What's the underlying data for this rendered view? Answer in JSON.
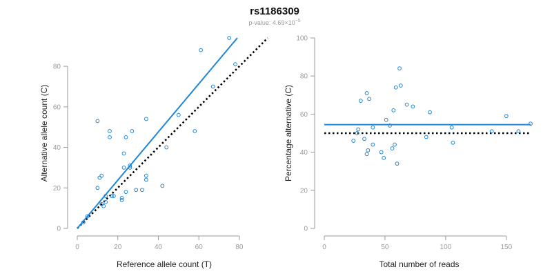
{
  "title": "rs1186309",
  "subtitle": {
    "prefix": "p-value: ",
    "mantissa": "4.69",
    "times": "×10",
    "exponent": "−5"
  },
  "colors": {
    "points": "#1f86d6",
    "fit_line": "#1f86d6",
    "reference_line": "#000000",
    "axis": "#9a9a9a",
    "tick_label": "#9a9a9a",
    "axis_title": "#222222"
  },
  "chart_data": [
    {
      "type": "scatter",
      "xlabel": "Reference allele count (T)",
      "ylabel": "Alternative allele count (C)",
      "xlim": [
        0,
        94
      ],
      "ylim": [
        0,
        94
      ],
      "xticks": [
        0,
        20,
        40,
        60,
        80
      ],
      "yticks": [
        0,
        20,
        40,
        60,
        80
      ],
      "grid": false,
      "points": {
        "x": [
          3,
          5,
          10,
          10,
          11,
          12,
          12,
          13,
          14,
          14,
          16,
          16,
          17,
          18,
          22,
          22,
          23,
          23,
          24,
          24,
          26,
          26,
          27,
          29,
          32,
          34,
          34,
          34,
          42,
          44,
          50,
          58,
          61,
          67,
          75,
          78
        ],
        "y": [
          3,
          6,
          53,
          20,
          25,
          12,
          26,
          11,
          13,
          16,
          48,
          45,
          16,
          16,
          14,
          15,
          37,
          30,
          45,
          18,
          31,
          30,
          48,
          19,
          19,
          26,
          54,
          24,
          21,
          40,
          56,
          48,
          88,
          70,
          94,
          81
        ]
      },
      "fit_line": {
        "x": [
          0,
          79
        ],
        "y": [
          0,
          94
        ]
      },
      "reference_line": {
        "x": [
          0,
          94
        ],
        "y": [
          0,
          94
        ]
      }
    },
    {
      "type": "scatter",
      "xlabel": "Total number of reads",
      "ylabel": "Percentage alternative (C)",
      "xlim": [
        0,
        170
      ],
      "ylim": [
        0,
        100
      ],
      "xticks": [
        0,
        50,
        100,
        150
      ],
      "yticks": [
        0,
        20,
        40,
        60,
        80,
        100
      ],
      "grid": false,
      "points": {
        "x": [
          24,
          27,
          28,
          30,
          33,
          35,
          35,
          36,
          37,
          40,
          40,
          47,
          49,
          51,
          54,
          56,
          57,
          58,
          59,
          60,
          62,
          63,
          68,
          73,
          84,
          87,
          105,
          106,
          138,
          150,
          160,
          170
        ],
        "y": [
          46,
          50,
          52,
          67,
          47,
          71,
          39,
          41,
          68,
          53,
          44,
          40,
          37,
          57,
          54,
          42,
          62,
          44,
          74,
          34,
          84,
          75,
          65,
          64,
          48,
          61,
          53,
          45,
          51,
          59,
          51,
          55
        ]
      },
      "fit_line": {
        "x": [
          0,
          170
        ],
        "y": [
          54.5,
          54.5
        ]
      },
      "reference_line": {
        "x": [
          0,
          170
        ],
        "y": [
          50,
          50
        ]
      }
    }
  ]
}
